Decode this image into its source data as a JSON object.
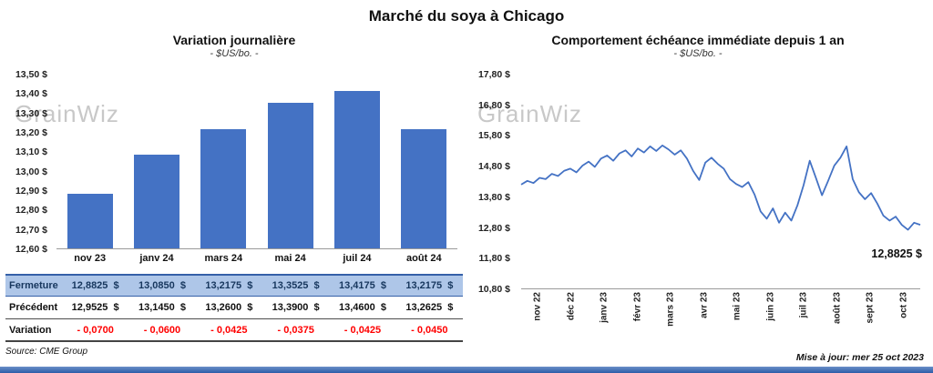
{
  "page": {
    "title": "Marché du soya à Chicago",
    "source": "Source: CME Group",
    "updated": "Mise à jour: mer 25 oct 2023",
    "watermark": "GrainWiz",
    "accent_color": "#4472C4",
    "bottom_bar_color": "#2D5CA8"
  },
  "chart_data": [
    {
      "type": "bar",
      "title": "Variation  journalière",
      "subtitle": "- $US/bo. -",
      "categories": [
        "nov 23",
        "janv 24",
        "mars 24",
        "mai 24",
        "juil 24",
        "août 24"
      ],
      "values": [
        12.8825,
        13.085,
        13.2175,
        13.3525,
        13.4175,
        13.2175
      ],
      "ylim": [
        12.6,
        13.5
      ],
      "ytick_step": 0.1,
      "ytick_labels": [
        "13,50 $",
        "13,40 $",
        "13,30 $",
        "13,20 $",
        "13,10 $",
        "13,00 $",
        "12,90 $",
        "12,80 $",
        "12,70 $",
        "12,60 $"
      ],
      "bar_color": "#4472C4",
      "grid": false,
      "legend": false,
      "table": {
        "rows": [
          {
            "label": "Fermeture",
            "style": "highlight",
            "values": [
              "12,8825  $",
              "13,0850  $",
              "13,2175  $",
              "13,3525  $",
              "13,4175  $",
              "13,2175  $"
            ]
          },
          {
            "label": "Précédent",
            "style": "normal",
            "values": [
              "12,9525  $",
              "13,1450  $",
              "13,2600  $",
              "13,3900  $",
              "13,4600  $",
              "13,2625  $"
            ]
          },
          {
            "label": "Variation",
            "style": "negative",
            "values": [
              "- 0,0700",
              "- 0,0600",
              "- 0,0425",
              "- 0,0375",
              "- 0,0425",
              "- 0,0450"
            ]
          }
        ]
      }
    },
    {
      "type": "line",
      "title": "Comportement  échéance  immédiate  depuis 1 an",
      "subtitle": "- $US/bo. -",
      "x_labels": [
        "nov 22",
        "déc 22",
        "janv 23",
        "févr 23",
        "mars 23",
        "avr 23",
        "mai 23",
        "juin 23",
        "juil 23",
        "août 23",
        "sept 23",
        "oct 23"
      ],
      "ylim": [
        10.8,
        17.8
      ],
      "ytick_labels": [
        "17,80 $",
        "16,80 $",
        "15,80 $",
        "14,80 $",
        "13,80 $",
        "12,80 $",
        "11,80 $",
        "10,80 $"
      ],
      "values": [
        14.2,
        14.32,
        14.25,
        14.42,
        14.38,
        14.55,
        14.48,
        14.65,
        14.72,
        14.6,
        14.82,
        14.95,
        14.78,
        15.05,
        15.15,
        14.98,
        15.22,
        15.32,
        15.12,
        15.38,
        15.25,
        15.45,
        15.3,
        15.48,
        15.35,
        15.18,
        15.32,
        15.05,
        14.65,
        14.35,
        14.92,
        15.08,
        14.88,
        14.72,
        14.38,
        14.22,
        14.12,
        14.28,
        13.88,
        13.32,
        13.08,
        13.42,
        12.95,
        13.28,
        13.02,
        13.52,
        14.18,
        14.98,
        14.42,
        13.85,
        14.32,
        14.82,
        15.08,
        15.45,
        14.38,
        13.95,
        13.72,
        13.92,
        13.58,
        13.18,
        13.02,
        13.15,
        12.88,
        12.72,
        12.95,
        12.8825
      ],
      "line_color": "#4472C4",
      "annotation": "12,8825 $",
      "grid": false,
      "legend": false
    }
  ]
}
